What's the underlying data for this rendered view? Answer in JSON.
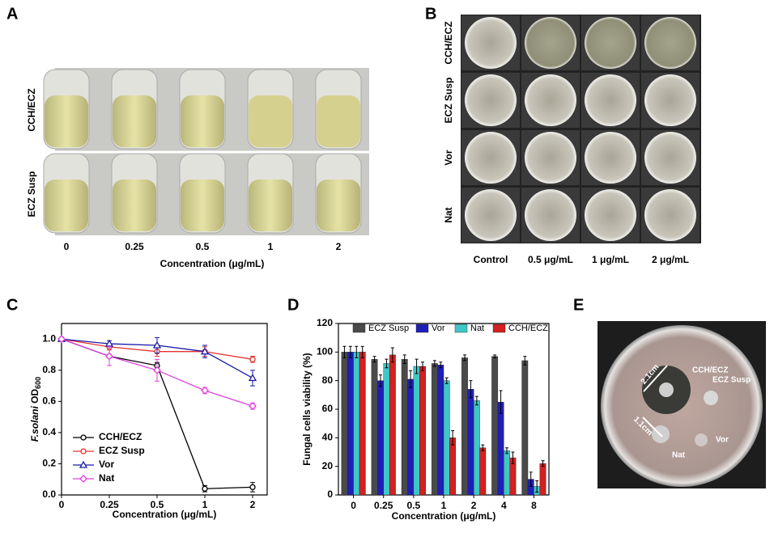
{
  "panels": {
    "a": {
      "label": "A",
      "rows": [
        "CCH/ECZ",
        "ECZ Susp"
      ],
      "columns": [
        "0",
        "0.25",
        "0.5",
        "1",
        "2"
      ],
      "xlabel": "Concentration (μg/mL)"
    },
    "b": {
      "label": "B",
      "rows": [
        "CCH/ECZ",
        "ECZ Susp",
        "Vor",
        "Nat"
      ],
      "columns": [
        "Control",
        "0.5 μg/mL",
        "1 μg/mL",
        "2 μg/mL"
      ]
    },
    "c": {
      "label": "C"
    },
    "d": {
      "label": "D"
    },
    "e": {
      "label": "E",
      "labels": [
        "CCH/ECZ",
        "ECZ Susp",
        "Vor",
        "Nat"
      ],
      "distances": [
        "2.1cm",
        "1.1cm"
      ]
    }
  },
  "chart_data": [
    {
      "type": "line",
      "categories": [
        "0",
        "0.25",
        "0.5",
        "1",
        "2"
      ],
      "xlabel": "Concentration (μg/mL)",
      "ylabel": [
        "F.solani",
        " OD",
        "600"
      ],
      "ylim": [
        0,
        1.1
      ],
      "yticks": [
        {
          "value": 0,
          "label": "0.0"
        },
        {
          "value": 0.2,
          "label": "0.2"
        },
        {
          "value": 0.4,
          "label": "0.4"
        },
        {
          "value": 0.6,
          "label": "0.6"
        },
        {
          "value": 0.8,
          "label": "0.8"
        },
        {
          "value": 1,
          "label": "1.0"
        }
      ],
      "legend": "lower left",
      "series": [
        {
          "name": "CCH/ECZ",
          "color": "#000000",
          "marker": "circle",
          "values": [
            1.0,
            0.89,
            0.83,
            0.04,
            0.05
          ],
          "errors": [
            0,
            0.06,
            0.02,
            0.02,
            0.03
          ]
        },
        {
          "name": "ECZ Susp",
          "color": "#e8312f",
          "marker": "circle",
          "values": [
            1.0,
            0.95,
            0.92,
            0.92,
            0.87
          ],
          "errors": [
            0,
            0.02,
            0.03,
            0.03,
            0.02
          ]
        },
        {
          "name": "Vor",
          "color": "#1a1aa6",
          "marker": "triangle",
          "values": [
            1.0,
            0.97,
            0.96,
            0.92,
            0.75
          ],
          "errors": [
            0,
            0.02,
            0.05,
            0.04,
            0.05
          ]
        },
        {
          "name": "Nat",
          "color": "#e040e0",
          "marker": "diamond",
          "values": [
            1.0,
            0.89,
            0.8,
            0.67,
            0.57
          ],
          "errors": [
            0,
            0.06,
            0.07,
            0.02,
            0.02
          ]
        }
      ]
    },
    {
      "type": "bar",
      "categories": [
        "0",
        "0.25",
        "0.5",
        "1",
        "2",
        "4",
        "8"
      ],
      "xlabel": "Concentration (μg/mL)",
      "ylabel": "Fungal cells viability (%)",
      "ylim": [
        0,
        120
      ],
      "yticks": [
        0,
        20,
        40,
        60,
        80,
        100,
        120
      ],
      "legend": "upper",
      "series": [
        {
          "name": "ECZ Susp",
          "color": "#4a4a4a",
          "values": [
            100,
            95,
            95,
            92,
            96,
            97,
            94
          ],
          "errors": [
            4,
            2,
            3,
            2,
            2,
            1,
            3
          ]
        },
        {
          "name": "Vor",
          "color": "#1f1fb8",
          "values": [
            100,
            80,
            81,
            91,
            74,
            65,
            11
          ],
          "errors": [
            4,
            4,
            6,
            2,
            6,
            8,
            5
          ]
        },
        {
          "name": "Nat",
          "color": "#3fc7c7",
          "values": [
            100,
            92,
            90,
            80,
            66,
            31,
            6
          ],
          "errors": [
            4,
            3,
            5,
            2,
            3,
            2,
            4
          ]
        },
        {
          "name": "CCH/ECZ",
          "color": "#d42020",
          "values": [
            100,
            98,
            90,
            40,
            33,
            26,
            22
          ],
          "errors": [
            4,
            5,
            3,
            5,
            2,
            4,
            2
          ]
        }
      ]
    }
  ]
}
